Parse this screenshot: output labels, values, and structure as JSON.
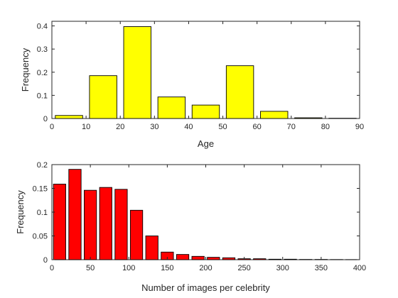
{
  "chart_data": [
    {
      "type": "bar",
      "xlabel": "Age",
      "ylabel": "Frequency",
      "xlim": [
        0,
        90
      ],
      "ylim": [
        0,
        0.42
      ],
      "xticks": [
        0,
        10,
        20,
        30,
        40,
        50,
        60,
        70,
        80,
        90
      ],
      "xtick_labels": [
        "0",
        "10",
        "20",
        "30",
        "40",
        "50",
        "60",
        "70",
        "80",
        "90"
      ],
      "yticks": [
        0,
        0.1,
        0.2,
        0.3,
        0.4
      ],
      "ytick_labels": [
        "0",
        "0.1",
        "0.2",
        "0.3",
        "0.4"
      ],
      "bar_color": "#ffff00",
      "bin_centers": [
        5,
        15,
        25,
        35,
        45,
        55,
        65,
        75,
        85
      ],
      "bin_width": 10,
      "values": [
        0.013,
        0.185,
        0.397,
        0.093,
        0.058,
        0.228,
        0.031,
        0.003,
        0.001
      ],
      "grid": false
    },
    {
      "type": "bar",
      "xlabel": "Number of images per celebrity",
      "ylabel": "Frequency",
      "xlim": [
        0,
        400
      ],
      "ylim": [
        0,
        0.2
      ],
      "xticks": [
        0,
        50,
        100,
        150,
        200,
        250,
        300,
        350,
        400
      ],
      "xtick_labels": [
        "0",
        "50",
        "100",
        "150",
        "200",
        "250",
        "300",
        "350",
        "400"
      ],
      "yticks": [
        0,
        0.05,
        0.1,
        0.15,
        0.2
      ],
      "ytick_labels": [
        "0",
        "0.05",
        "0.1",
        "0.15",
        "0.2"
      ],
      "bar_color": "#ff0000",
      "bin_centers": [
        10,
        30,
        50,
        70,
        90,
        110,
        130,
        150,
        170,
        190,
        210,
        230,
        250,
        270,
        290,
        310,
        330,
        350,
        370,
        390
      ],
      "bin_width": 20,
      "values": [
        0.159,
        0.19,
        0.146,
        0.152,
        0.148,
        0.104,
        0.05,
        0.016,
        0.011,
        0.007,
        0.005,
        0.004,
        0.002,
        0.002,
        0.001,
        0.001,
        0.0005,
        0.0005,
        0.0003,
        0.0002
      ],
      "grid": false
    }
  ]
}
